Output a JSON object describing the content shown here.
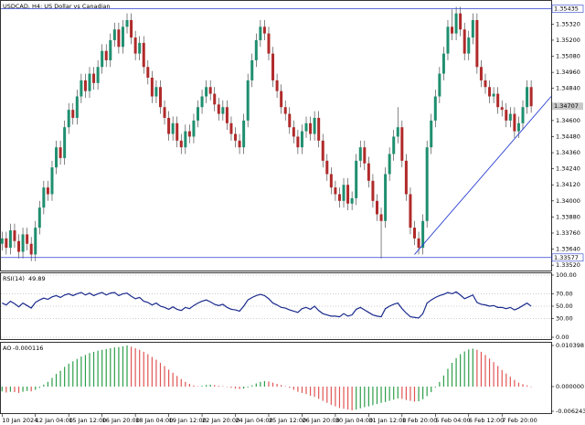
{
  "chart_data": [
    {
      "type": "candlestick",
      "title": "USDCAD, H4: US Dollar vs Canadian",
      "up_color": "#1f8f6f",
      "down_color": "#b02a2a",
      "wick_color": "#333333",
      "xlim": [
        -0.5,
        131.8
      ],
      "xticks": [
        {
          "value": 0,
          "label": "10 Jan 2024"
        },
        {
          "value": 8,
          "label": "12 Jan 04:00"
        },
        {
          "value": 16,
          "label": "15 Jan 12:00"
        },
        {
          "value": 24,
          "label": "16 Jan 20:00"
        },
        {
          "value": 32,
          "label": "18 Jan 04:00"
        },
        {
          "value": 40,
          "label": "19 Jan 12:00"
        },
        {
          "value": 48,
          "label": "22 Jan 20:00"
        },
        {
          "value": 56,
          "label": "24 Jan 04:00"
        },
        {
          "value": 64,
          "label": "25 Jan 12:00"
        },
        {
          "value": 72,
          "label": "26 Jan 20:00"
        },
        {
          "value": 80,
          "label": "30 Jan 04:00"
        },
        {
          "value": 88,
          "label": "31 Jan 12:00"
        },
        {
          "value": 96,
          "label": "1 Feb 20:00"
        },
        {
          "value": 104,
          "label": "5 Feb 04:00"
        },
        {
          "value": 112,
          "label": "6 Feb 12:00"
        },
        {
          "value": 120,
          "label": "7 Feb 20:00"
        }
      ],
      "ylim": [
        1.3348,
        1.355
      ],
      "yticks": [
        {
          "value": 1.3532,
          "label": "1.35320"
        },
        {
          "value": 1.352,
          "label": "1.35200"
        },
        {
          "value": 1.3508,
          "label": "1.35080"
        },
        {
          "value": 1.3496,
          "label": "1.34960"
        },
        {
          "value": 1.3484,
          "label": "1.34840"
        },
        {
          "value": 1.346,
          "label": "1.34600"
        },
        {
          "value": 1.3448,
          "label": "1.34480"
        },
        {
          "value": 1.3436,
          "label": "1.34360"
        },
        {
          "value": 1.3424,
          "label": "1.34240"
        },
        {
          "value": 1.3412,
          "label": "1.34120"
        },
        {
          "value": 1.34,
          "label": "1.34000"
        },
        {
          "value": 1.3388,
          "label": "1.33880"
        },
        {
          "value": 1.3376,
          "label": "1.33760"
        },
        {
          "value": 1.3364,
          "label": "1.33640"
        },
        {
          "value": 1.3352,
          "label": "1.33520"
        }
      ],
      "hlines": [
        1.35435,
        1.33577
      ],
      "hline_color": "#2a3fd0",
      "trendline": {
        "x": [
          99,
          132
        ],
        "y": [
          1.336,
          1.3478
        ]
      },
      "open": [
        1.3368,
        1.3372,
        1.3365,
        1.3378,
        1.337,
        1.3362,
        1.3375,
        1.3368,
        1.336,
        1.338,
        1.3395,
        1.341,
        1.3405,
        1.3425,
        1.344,
        1.3432,
        1.3455,
        1.3468,
        1.3462,
        1.3478,
        1.349,
        1.3482,
        1.3495,
        1.3488,
        1.35,
        1.3512,
        1.3505,
        1.352,
        1.3528,
        1.3515,
        1.353,
        1.3535,
        1.3522,
        1.351,
        1.3518,
        1.35,
        1.3492,
        1.3478,
        1.3485,
        1.347,
        1.3462,
        1.345,
        1.3458,
        1.3445,
        1.344,
        1.3452,
        1.3448,
        1.346,
        1.347,
        1.3478,
        1.3485,
        1.348,
        1.3472,
        1.3465,
        1.347,
        1.3458,
        1.345,
        1.3445,
        1.344,
        1.346,
        1.349,
        1.3505,
        1.352,
        1.353,
        1.3525,
        1.351,
        1.349,
        1.3482,
        1.347,
        1.3465,
        1.3455,
        1.3448,
        1.344,
        1.3452,
        1.3458,
        1.345,
        1.3462,
        1.3445,
        1.343,
        1.342,
        1.341,
        1.3405,
        1.34,
        1.3412,
        1.3398,
        1.3402,
        1.343,
        1.344,
        1.3428,
        1.3415,
        1.34,
        1.339,
        1.3385,
        1.342,
        1.3435,
        1.3448,
        1.3455,
        1.343,
        1.3405,
        1.338,
        1.3372,
        1.3365,
        1.3385,
        1.344,
        1.346,
        1.3478,
        1.3495,
        1.351,
        1.353,
        1.3525,
        1.354,
        1.3528,
        1.351,
        1.3522,
        1.3535,
        1.35,
        1.349,
        1.3485,
        1.3478,
        1.348,
        1.347,
        1.3468,
        1.346,
        1.3465,
        1.3452,
        1.3458,
        1.347,
        1.3485
      ],
      "high": [
        1.3377,
        1.3377,
        1.3383,
        1.3383,
        1.3375,
        1.338,
        1.338,
        1.3373,
        1.3385,
        1.34,
        1.3415,
        1.3415,
        1.343,
        1.3445,
        1.3445,
        1.346,
        1.3473,
        1.3473,
        1.3483,
        1.3495,
        1.3495,
        1.35,
        1.35,
        1.3505,
        1.3517,
        1.3517,
        1.3525,
        1.3533,
        1.3533,
        1.3535,
        1.354,
        1.354,
        1.3527,
        1.3523,
        1.3523,
        1.3505,
        1.3497,
        1.349,
        1.349,
        1.3475,
        1.3467,
        1.3463,
        1.3463,
        1.345,
        1.3457,
        1.3457,
        1.3465,
        1.3475,
        1.3483,
        1.349,
        1.349,
        1.3485,
        1.3477,
        1.3475,
        1.3475,
        1.3463,
        1.3455,
        1.345,
        1.3465,
        1.3495,
        1.351,
        1.3525,
        1.3535,
        1.3535,
        1.353,
        1.3515,
        1.3495,
        1.3487,
        1.3475,
        1.347,
        1.346,
        1.3453,
        1.3457,
        1.3463,
        1.3463,
        1.3467,
        1.3467,
        1.345,
        1.3435,
        1.3425,
        1.3415,
        1.341,
        1.3417,
        1.3417,
        1.3407,
        1.3435,
        1.3445,
        1.3445,
        1.3433,
        1.342,
        1.3405,
        1.3395,
        1.3425,
        1.344,
        1.3453,
        1.347,
        1.346,
        1.3435,
        1.341,
        1.3385,
        1.3377,
        1.339,
        1.3445,
        1.3465,
        1.3483,
        1.35,
        1.3515,
        1.3535,
        1.3543,
        1.3545,
        1.3545,
        1.3533,
        1.3527,
        1.354,
        1.354,
        1.3505,
        1.3495,
        1.349,
        1.3485,
        1.3485,
        1.3475,
        1.3473,
        1.347,
        1.347,
        1.3463,
        1.3475,
        1.349,
        1.349
      ],
      "low": [
        1.3363,
        1.336,
        1.336,
        1.3365,
        1.3357,
        1.3357,
        1.3363,
        1.3355,
        1.3355,
        1.3375,
        1.339,
        1.34,
        1.34,
        1.342,
        1.3427,
        1.3427,
        1.345,
        1.3457,
        1.3457,
        1.3473,
        1.3477,
        1.3477,
        1.3483,
        1.3483,
        1.3495,
        1.35,
        1.35,
        1.3515,
        1.351,
        1.351,
        1.3525,
        1.3517,
        1.3505,
        1.3505,
        1.3495,
        1.3487,
        1.3473,
        1.3473,
        1.3465,
        1.3457,
        1.3445,
        1.3445,
        1.344,
        1.3435,
        1.3435,
        1.3443,
        1.3443,
        1.3455,
        1.3465,
        1.3473,
        1.3475,
        1.3467,
        1.346,
        1.346,
        1.3453,
        1.3445,
        1.344,
        1.3435,
        1.3435,
        1.3455,
        1.3485,
        1.35,
        1.3515,
        1.352,
        1.3505,
        1.3485,
        1.3477,
        1.3465,
        1.346,
        1.345,
        1.3443,
        1.3435,
        1.3435,
        1.3447,
        1.3445,
        1.3445,
        1.344,
        1.3425,
        1.3415,
        1.3405,
        1.34,
        1.3395,
        1.3395,
        1.3393,
        1.3393,
        1.3397,
        1.3425,
        1.3423,
        1.341,
        1.3395,
        1.3385,
        1.3357,
        1.338,
        1.3415,
        1.343,
        1.3443,
        1.3425,
        1.34,
        1.3375,
        1.3367,
        1.336,
        1.336,
        1.338,
        1.3435,
        1.3455,
        1.3473,
        1.349,
        1.3505,
        1.352,
        1.352,
        1.3523,
        1.3505,
        1.3505,
        1.3517,
        1.3495,
        1.3485,
        1.348,
        1.3473,
        1.3473,
        1.3465,
        1.3463,
        1.3455,
        1.3455,
        1.3447,
        1.3447,
        1.3453,
        1.3465,
        1.3466
      ],
      "close": [
        1.3372,
        1.3365,
        1.3378,
        1.337,
        1.3362,
        1.3375,
        1.3368,
        1.336,
        1.338,
        1.3395,
        1.341,
        1.3405,
        1.3425,
        1.344,
        1.3432,
        1.3455,
        1.3468,
        1.3462,
        1.3478,
        1.349,
        1.3482,
        1.3495,
        1.3488,
        1.35,
        1.3512,
        1.3505,
        1.352,
        1.3528,
        1.3515,
        1.353,
        1.3535,
        1.3522,
        1.351,
        1.3518,
        1.35,
        1.3492,
        1.3478,
        1.3485,
        1.347,
        1.3462,
        1.345,
        1.3458,
        1.3445,
        1.344,
        1.3452,
        1.3448,
        1.346,
        1.347,
        1.3478,
        1.3485,
        1.348,
        1.3472,
        1.3465,
        1.347,
        1.3458,
        1.345,
        1.3445,
        1.344,
        1.346,
        1.349,
        1.3505,
        1.352,
        1.353,
        1.3525,
        1.351,
        1.349,
        1.3482,
        1.347,
        1.3465,
        1.3455,
        1.3448,
        1.344,
        1.3452,
        1.3458,
        1.345,
        1.3462,
        1.3445,
        1.343,
        1.342,
        1.341,
        1.3405,
        1.34,
        1.3412,
        1.3398,
        1.3402,
        1.343,
        1.344,
        1.3428,
        1.3415,
        1.34,
        1.339,
        1.3385,
        1.342,
        1.3435,
        1.3448,
        1.3455,
        1.343,
        1.3405,
        1.338,
        1.3372,
        1.3365,
        1.3385,
        1.344,
        1.346,
        1.3478,
        1.3495,
        1.351,
        1.353,
        1.3525,
        1.354,
        1.3528,
        1.351,
        1.3522,
        1.3535,
        1.35,
        1.349,
        1.3485,
        1.3478,
        1.348,
        1.347,
        1.3468,
        1.346,
        1.3465,
        1.3452,
        1.3458,
        1.347,
        1.3485,
        1.34707
      ]
    },
    {
      "type": "line",
      "title": "RSI(14)",
      "color": "#1a2a8c",
      "grid": true,
      "ylim": [
        0,
        100
      ],
      "yticks": [
        {
          "value": 100,
          "label": "100.00"
        },
        {
          "value": 70,
          "label": "70.00"
        },
        {
          "value": 50,
          "label": "50.00"
        },
        {
          "value": 30,
          "label": "30.00"
        },
        {
          "value": 0,
          "label": "0.00"
        }
      ],
      "values": [
        55,
        52,
        58,
        54,
        49,
        55,
        51,
        47,
        56,
        60,
        63,
        61,
        65,
        67,
        64,
        68,
        70,
        67,
        70,
        72,
        68,
        71,
        67,
        70,
        72,
        68,
        71,
        72,
        67,
        70,
        71,
        66,
        62,
        64,
        58,
        56,
        52,
        55,
        50,
        48,
        45,
        49,
        45,
        43,
        48,
        46,
        51,
        55,
        58,
        60,
        57,
        53,
        51,
        53,
        48,
        45,
        44,
        42,
        50,
        60,
        64,
        67,
        69,
        67,
        62,
        55,
        52,
        48,
        47,
        44,
        42,
        40,
        46,
        48,
        45,
        50,
        43,
        38,
        36,
        34,
        34,
        33,
        38,
        34,
        36,
        45,
        48,
        44,
        40,
        36,
        34,
        33,
        46,
        50,
        53,
        55,
        46,
        39,
        33,
        32,
        31,
        38,
        55,
        60,
        64,
        67,
        69,
        72,
        70,
        73,
        68,
        62,
        65,
        68,
        56,
        53,
        52,
        50,
        51,
        48,
        48,
        46,
        48,
        44,
        47,
        51,
        55,
        49.89
      ]
    },
    {
      "type": "histogram",
      "title": "AO",
      "up_color": "#2e9e4a",
      "down_color": "#e05555",
      "ylim": [
        -0.006243,
        0.010398
      ],
      "yticks": [
        0.010398,
        {
          "value": 0,
          "label": "0.000000"
        },
        -0.006243
      ],
      "values": [
        -0.0012,
        -0.0015,
        -0.0013,
        -0.0014,
        -0.0016,
        -0.0013,
        -0.0011,
        -0.0012,
        -0.0008,
        -0.0003,
        0.0005,
        0.0012,
        0.0022,
        0.0032,
        0.004,
        0.005,
        0.0058,
        0.0064,
        0.007,
        0.0076,
        0.008,
        0.0085,
        0.0088,
        0.0091,
        0.0093,
        0.0095,
        0.0097,
        0.0099,
        0.01,
        0.0102,
        0.0104,
        0.0101,
        0.0097,
        0.0093,
        0.0088,
        0.0082,
        0.0075,
        0.0068,
        0.006,
        0.0052,
        0.0043,
        0.0035,
        0.0027,
        0.0019,
        0.0012,
        0.0007,
        0.0003,
        0.0001,
        0.0002,
        0.0004,
        0.0005,
        0.0004,
        0.0002,
        0.0001,
        -0.0001,
        -0.0003,
        -0.0005,
        -0.0006,
        -0.0005,
        -0.0002,
        0.0003,
        0.0008,
        0.0012,
        0.0014,
        0.0013,
        0.001,
        0.0007,
        0.0004,
        0.0001,
        -0.0003,
        -0.0008,
        -0.0013,
        -0.0016,
        -0.0019,
        -0.0023,
        -0.0026,
        -0.0031,
        -0.0036,
        -0.0041,
        -0.0046,
        -0.005,
        -0.0054,
        -0.0056,
        -0.0058,
        -0.006,
        -0.0058,
        -0.0055,
        -0.0052,
        -0.005,
        -0.0047,
        -0.0044,
        -0.0041,
        -0.0039,
        -0.0036,
        -0.0033,
        -0.003,
        -0.0031,
        -0.0034,
        -0.0036,
        -0.0038,
        -0.0037,
        -0.0032,
        -0.0024,
        -0.0014,
        -0.0002,
        0.0012,
        0.0028,
        0.0045,
        0.006,
        0.0072,
        0.0082,
        0.0089,
        0.0094,
        0.0096,
        0.0093,
        0.0088,
        0.008,
        0.0071,
        0.0062,
        0.0052,
        0.0042,
        0.0033,
        0.0025,
        0.0017,
        0.001,
        0.0006,
        0.0003,
        -0.000116
      ]
    }
  ]
}
